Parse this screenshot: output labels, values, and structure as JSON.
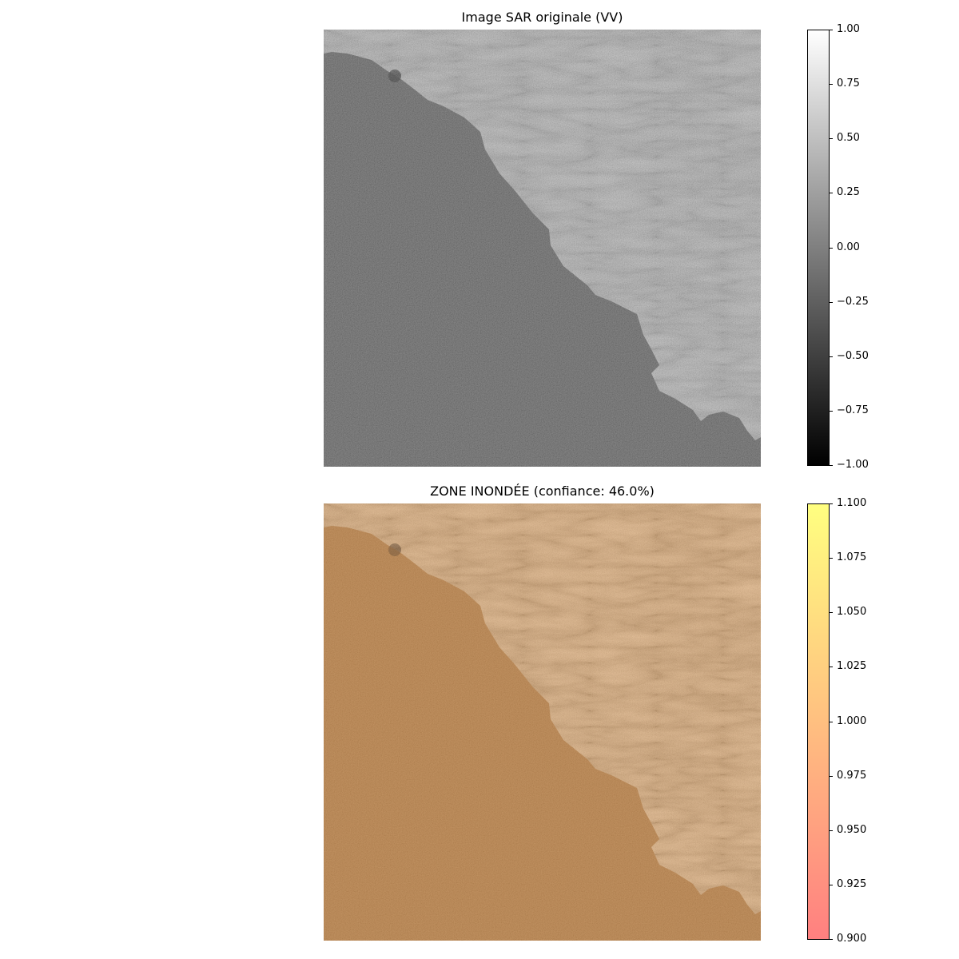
{
  "panels": [
    {
      "title": "Image SAR originale (VV)",
      "colormap": "gray",
      "colorbar": {
        "gradient": [
          "#000000",
          "#ffffff"
        ],
        "ticks": [
          "1.00",
          "0.75",
          "0.50",
          "0.25",
          "0.00",
          "−0.25",
          "−0.50",
          "−0.75",
          "−1.00"
        ]
      }
    },
    {
      "title": "ZONE INONDÉE (confiance: 46.0%)",
      "colormap": "autumn-overlay",
      "colorbar": {
        "gradient": [
          "#ff8080",
          "#ffff80"
        ],
        "ticks": [
          "1.100",
          "1.075",
          "1.050",
          "1.025",
          "1.000",
          "0.975",
          "0.950",
          "0.925",
          "0.900"
        ]
      }
    }
  ],
  "colors": {
    "water_gray": "#4f4f4f",
    "land_gray": "#a9a9a9",
    "water_orange": "#b77a3c",
    "land_orange": "#e2a86a"
  }
}
